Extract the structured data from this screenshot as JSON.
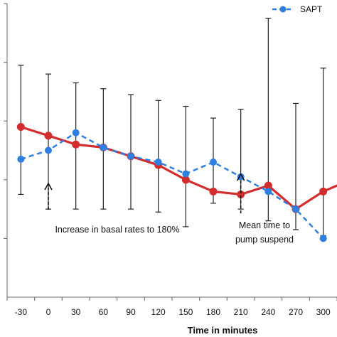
{
  "chart_data": {
    "type": "line",
    "title": "",
    "xlabel": "Time in minutes",
    "ylabel": "",
    "xlim": [
      -45,
      315
    ],
    "ylim": [
      0,
      5
    ],
    "x_ticks": [
      -30,
      0,
      30,
      60,
      90,
      120,
      150,
      180,
      210,
      240,
      270,
      300
    ],
    "x_tick_labels": [
      "-30",
      "0",
      "30",
      "60",
      "90",
      "120",
      "150",
      "180",
      "210",
      "240",
      "270",
      "300"
    ],
    "y_tick_count": 5,
    "grid": false,
    "legend": {
      "position": "top-right",
      "entries": [
        "SAPT"
      ]
    },
    "x": [
      -30,
      0,
      30,
      60,
      90,
      120,
      150,
      180,
      210,
      240,
      270,
      300,
      330
    ],
    "series": [
      {
        "name": "SAPT",
        "color": "#2f7fe0",
        "style": "dashed",
        "marker": "circle",
        "values": [
          2.35,
          2.5,
          2.8,
          2.55,
          2.4,
          2.3,
          2.1,
          2.3,
          2.05,
          1.8,
          1.5,
          1.0,
          null
        ],
        "error_upper": [
          3.95,
          3.8,
          3.65,
          3.55,
          3.45,
          3.35,
          3.25,
          3.05,
          3.2,
          4.75,
          3.3,
          3.9,
          null
        ],
        "error_lower": [
          1.75,
          1.5,
          1.5,
          1.5,
          1.5,
          1.45,
          1.2,
          1.6,
          1.5,
          1.3,
          1.15,
          1.05,
          null
        ]
      },
      {
        "name": "",
        "color": "#d42d2d",
        "style": "solid",
        "marker": "circle",
        "values": [
          2.9,
          2.75,
          2.6,
          2.55,
          2.4,
          2.25,
          2.0,
          1.8,
          1.75,
          1.9,
          1.5,
          1.8,
          2.0
        ]
      }
    ],
    "annotations": [
      {
        "text": "Increase in basal rates to 180%",
        "x": 0
      },
      {
        "text": "Mean time to",
        "x": 210
      },
      {
        "text": "pump suspend",
        "x": 210
      }
    ]
  }
}
